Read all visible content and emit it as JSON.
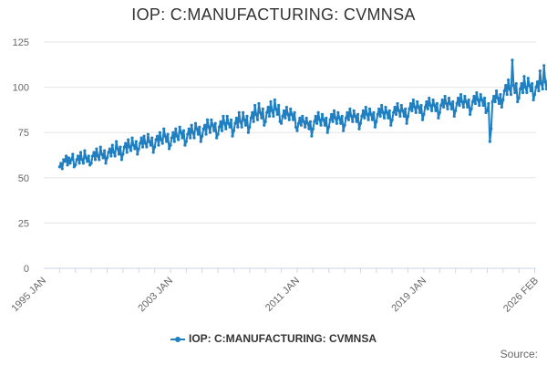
{
  "title": "IOP: C:MANUFACTURING: CVMNSA",
  "source_label": "Source:",
  "colors": {
    "series": "#1f7fc0",
    "grid": "#e6e6e6",
    "axis": "#ccd6eb",
    "text": "#333333",
    "tick": "#666666"
  },
  "chart_data": {
    "type": "line",
    "title": "IOP: C:MANUFACTURING: CVMNSA",
    "xlabel": "",
    "ylabel": "",
    "ylim": [
      0,
      125
    ],
    "yticks": [
      0,
      25,
      50,
      75,
      100,
      125
    ],
    "xlim": [
      "1995-01",
      "2026-02"
    ],
    "xtick_labels": [
      "1995 JAN",
      "2003 JAN",
      "2011 JAN",
      "2019 JAN",
      "2026 FEB"
    ],
    "grid": true,
    "legend_position": "bottom-center",
    "series": [
      {
        "name": "IOP: C:MANUFACTURING: CVMNSA",
        "start": "1996-01",
        "frequency": "monthly",
        "values": [
          56,
          58,
          55,
          60,
          59,
          62,
          57,
          61,
          58,
          60,
          63,
          56,
          57,
          60,
          62,
          58,
          64,
          60,
          58,
          65,
          61,
          59,
          62,
          57,
          58,
          62,
          64,
          60,
          66,
          62,
          60,
          67,
          63,
          61,
          65,
          58,
          61,
          64,
          66,
          62,
          68,
          64,
          62,
          70,
          66,
          63,
          67,
          60,
          63,
          67,
          69,
          64,
          71,
          67,
          65,
          72,
          68,
          66,
          70,
          63,
          66,
          69,
          72,
          67,
          73,
          69,
          67,
          74,
          70,
          68,
          72,
          64,
          67,
          71,
          73,
          68,
          75,
          71,
          69,
          77,
          73,
          70,
          74,
          66,
          68,
          72,
          75,
          70,
          77,
          73,
          71,
          78,
          75,
          72,
          76,
          68,
          70,
          74,
          77,
          72,
          79,
          75,
          72,
          80,
          77,
          74,
          78,
          70,
          73,
          77,
          79,
          74,
          82,
          78,
          75,
          82,
          79,
          76,
          80,
          72,
          74,
          78,
          81,
          76,
          84,
          80,
          77,
          84,
          80,
          78,
          82,
          73,
          76,
          80,
          83,
          78,
          86,
          81,
          78,
          86,
          82,
          79,
          84,
          75,
          78,
          83,
          86,
          81,
          90,
          85,
          82,
          91,
          86,
          83,
          88,
          79,
          81,
          86,
          89,
          84,
          92,
          87,
          84,
          93,
          88,
          85,
          90,
          81,
          80,
          84,
          87,
          83,
          89,
          85,
          82,
          88,
          85,
          82,
          86,
          78,
          76,
          80,
          83,
          79,
          84,
          81,
          78,
          83,
          80,
          77,
          81,
          73,
          77,
          81,
          84,
          80,
          86,
          82,
          79,
          85,
          82,
          79,
          83,
          75,
          78,
          82,
          85,
          81,
          87,
          83,
          80,
          86,
          83,
          80,
          84,
          76,
          79,
          83,
          86,
          82,
          88,
          84,
          81,
          87,
          84,
          81,
          85,
          77,
          80,
          84,
          87,
          83,
          89,
          85,
          82,
          88,
          85,
          82,
          86,
          78,
          81,
          85,
          88,
          84,
          90,
          86,
          83,
          89,
          86,
          83,
          87,
          79,
          82,
          86,
          89,
          85,
          91,
          87,
          84,
          90,
          87,
          84,
          88,
          80,
          84,
          88,
          91,
          87,
          93,
          89,
          86,
          92,
          89,
          86,
          90,
          82,
          85,
          89,
          92,
          88,
          94,
          90,
          87,
          93,
          90,
          87,
          91,
          83,
          86,
          90,
          93,
          89,
          95,
          91,
          88,
          94,
          91,
          88,
          92,
          84,
          87,
          91,
          94,
          90,
          96,
          92,
          89,
          95,
          92,
          89,
          93,
          85,
          88,
          92,
          95,
          91,
          97,
          93,
          90,
          96,
          93,
          90,
          94,
          86,
          87,
          91,
          70,
          77,
          92,
          95,
          92,
          98,
          94,
          91,
          96,
          89,
          93,
          98,
          101,
          96,
          104,
          99,
          96,
          115,
          101,
          97,
          102,
          92,
          94,
          99,
          102,
          97,
          106,
          100,
          97,
          105,
          101,
          98,
          102,
          93,
          96,
          100,
          103,
          98,
          109,
          102,
          99,
          112,
          103,
          99,
          104,
          95,
          97,
          101,
          104,
          99,
          110,
          103,
          100,
          108,
          104,
          100,
          105,
          96,
          98,
          102,
          105,
          100,
          106,
          103,
          99,
          104,
          101,
          98,
          102,
          94,
          96,
          95
        ]
      }
    ]
  }
}
